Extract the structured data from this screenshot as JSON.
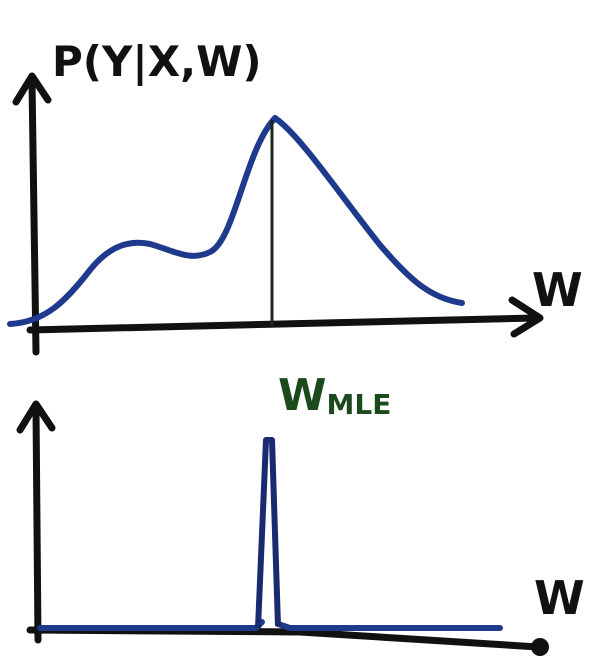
{
  "top_plot": {
    "y_label": "P(Y|X,W)",
    "x_label": "W",
    "marker_label": "W",
    "marker_subscript": "MLE"
  },
  "bottom_plot": {
    "x_label": "W"
  },
  "colors": {
    "axis": "#111111",
    "curve": "#1f3a8c",
    "marker": "#1a2a1a",
    "marker_label": "#1d4a1d"
  }
}
